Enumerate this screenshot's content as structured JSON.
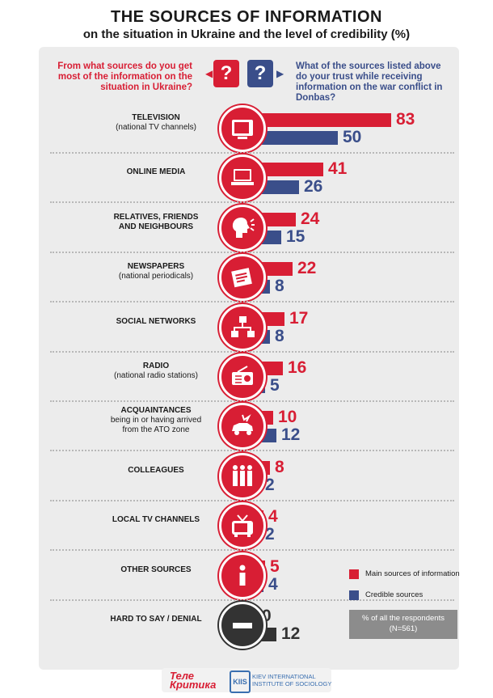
{
  "title": "THE SOURCES OF INFORMATION",
  "subtitle": "on the situation in Ukraine and the level of credibility (%)",
  "question_left": "From what sources do you get most of the information on the situation in Ukraine?",
  "question_right": "What of the sources listed above do your trust while receiving information on the war conflict in Donbas?",
  "question_mark": "?",
  "legend": {
    "main": "Main sources of information",
    "credible": "Credible sources"
  },
  "note": "% of all the respondents (N=561)",
  "logos": {
    "telekritika_line1": "Теле",
    "telekritika_line2": "Критика",
    "kiis_mark": "KIIS",
    "kiis_line1": "KIEV INTERNATIONAL",
    "kiis_line2": "INSTITUTE OF SOCIOLOGY"
  },
  "colors": {
    "main": "#d81e34",
    "credible": "#3a4e8a",
    "neutral": "#333333"
  },
  "chart_data": {
    "type": "bar",
    "categories": [
      "TELEVISION (national TV channels)",
      "ONLINE MEDIA",
      "RELATIVES, FRIENDS AND NEIGHBOURS",
      "NEWSPAPERS (national periodicals)",
      "SOCIAL NETWORKS",
      "RADIO (national radio stations)",
      "ACQUAINTANCES being in or having arrived from the ATO zone",
      "COLLEAGUES",
      "LOCAL TV CHANNELS",
      "OTHER SOURCES",
      "HARD TO SAY / DENIAL"
    ],
    "series": [
      {
        "name": "Main sources of information",
        "values": [
          83,
          41,
          24,
          22,
          17,
          16,
          10,
          8,
          4,
          5,
          0
        ]
      },
      {
        "name": "Credible sources",
        "values": [
          50,
          26,
          15,
          8,
          8,
          5,
          12,
          2,
          2,
          4,
          12
        ]
      }
    ],
    "orientation": "horizontal",
    "unit": "%"
  },
  "rows": [
    {
      "main": "TELEVISION",
      "sub": "(national TV channels)",
      "icon": "tv-icon"
    },
    {
      "main": "ONLINE MEDIA",
      "sub": "",
      "icon": "laptop-icon"
    },
    {
      "main": "RELATIVES, FRIENDS",
      "sub2": "AND NEIGHBOURS",
      "sub": "",
      "icon": "speaking-head-icon"
    },
    {
      "main": "NEWSPAPERS",
      "sub": "(national periodicals)",
      "icon": "newspaper-icon"
    },
    {
      "main": "SOCIAL NETWORKS",
      "sub": "",
      "icon": "network-icon"
    },
    {
      "main": "RADIO",
      "sub": "(national radio stations)",
      "icon": "radio-icon"
    },
    {
      "main": "ACQUAINTANCES",
      "sub2": "being in or having arrived",
      "sub3": "from the ATO zone",
      "sub": "",
      "icon": "car-crash-icon"
    },
    {
      "main": "COLLEAGUES",
      "sub": "",
      "icon": "people-icon"
    },
    {
      "main": "LOCAL TV CHANNELS",
      "sub": "",
      "icon": "retro-tv-icon"
    },
    {
      "main": "OTHER SOURCES",
      "sub": "",
      "icon": "info-icon"
    },
    {
      "main": "HARD TO SAY / DENIAL",
      "sub": "",
      "icon": "minus-icon"
    }
  ]
}
